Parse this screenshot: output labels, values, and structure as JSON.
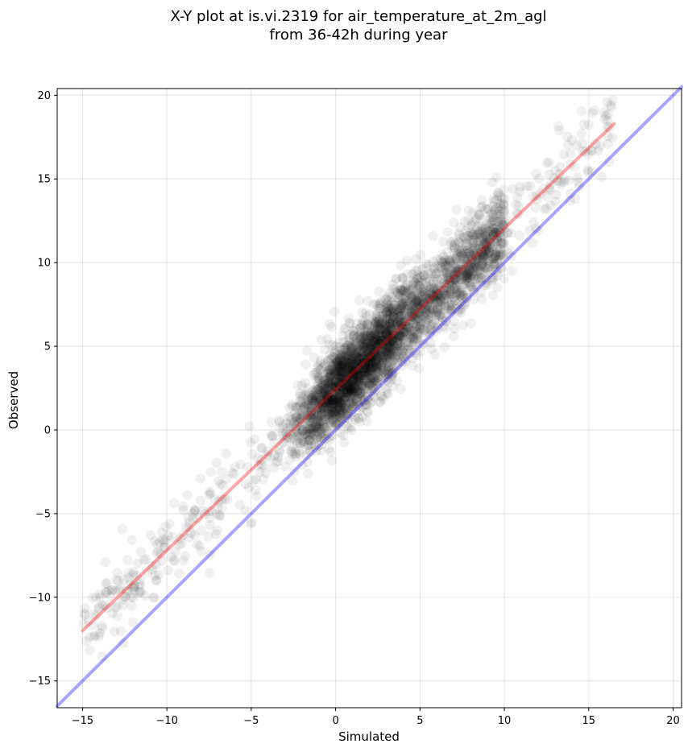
{
  "chart_data": {
    "type": "scatter",
    "title": "X-Y plot at is.vi.2319 for air_temperature_at_2m_agl",
    "subtitle": "from 36-42h during year",
    "xlabel": "Simulated",
    "ylabel": "Observed",
    "xlim": [
      -16.5,
      20.5
    ],
    "ylim": [
      -16.6,
      20.4
    ],
    "xticks": [
      -15,
      -10,
      -5,
      0,
      5,
      10,
      15,
      20
    ],
    "yticks": [
      -15,
      -10,
      -5,
      0,
      5,
      10,
      15,
      20
    ],
    "xtick_labels": [
      "−15",
      "−10",
      "−5",
      "0",
      "5",
      "10",
      "15",
      "20"
    ],
    "ytick_labels": [
      "−15",
      "−10",
      "−5",
      "0",
      "5",
      "10",
      "15",
      "20"
    ],
    "grid": true,
    "points_color": "#000000",
    "points_alpha": 0.06,
    "series": [
      {
        "type": "line",
        "color": "#ff0000",
        "alpha": 0.35,
        "x": [
          -15.0,
          16.5
        ],
        "y": [
          -12.0,
          18.3
        ]
      },
      {
        "type": "line",
        "color": "#0000ff",
        "alpha": 0.35,
        "x": [
          -16.5,
          20.5
        ],
        "y": [
          -16.5,
          20.5
        ]
      }
    ],
    "scatter_trend": {
      "slope": 0.96,
      "intercept": 2.4,
      "x_range": [
        -15.0,
        16.5
      ],
      "density_peak_x": [
        -1.0,
        3.0
      ],
      "spread": 1.6,
      "approx_points": 3500
    }
  }
}
